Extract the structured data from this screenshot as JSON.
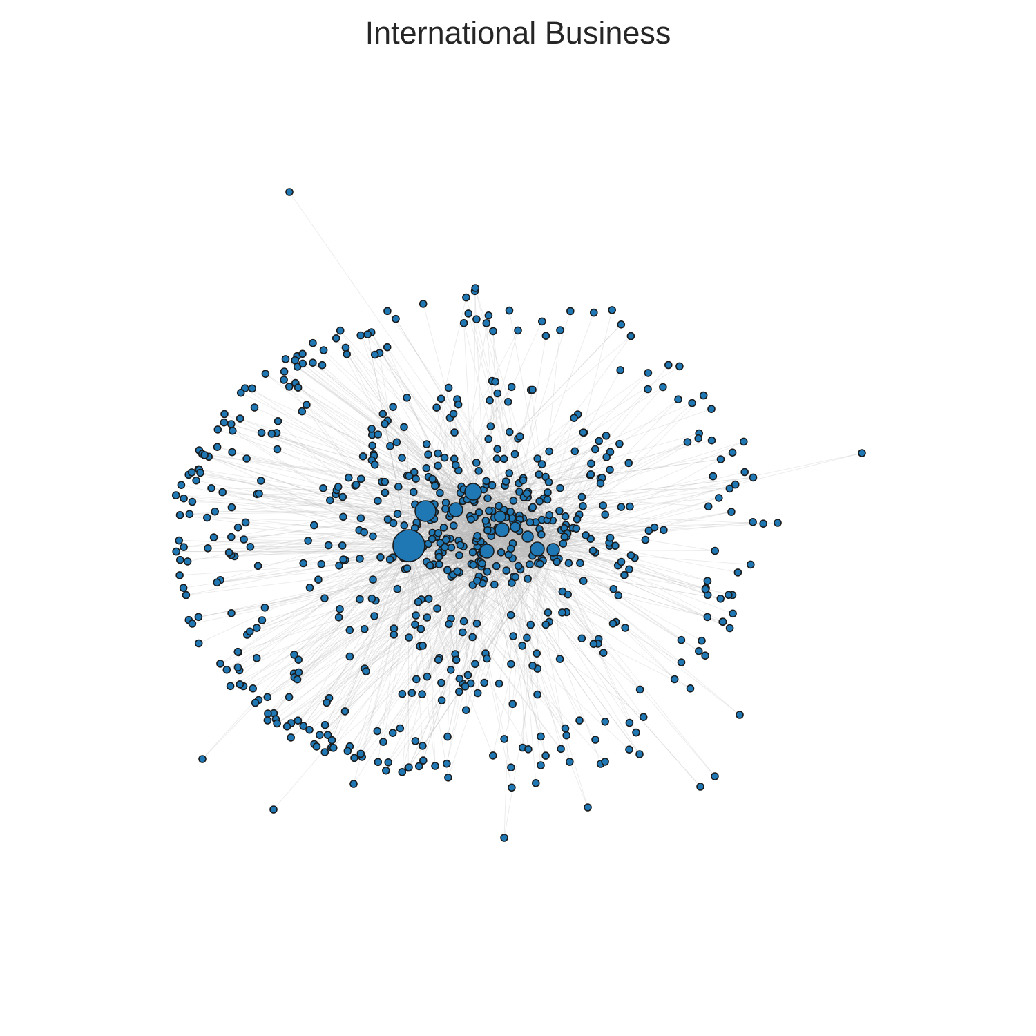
{
  "title": "International Business",
  "colors": {
    "node_fill": "#1f77b4",
    "node_stroke": "#1a1a1a",
    "edge": "#bbbbbb",
    "background": "#ffffff"
  }
}
